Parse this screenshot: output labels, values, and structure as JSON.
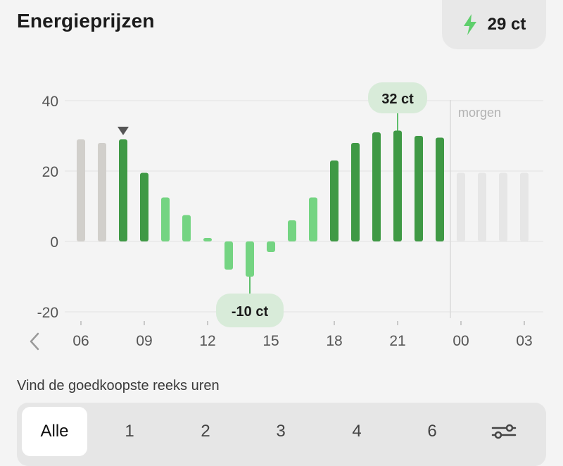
{
  "header": {
    "title": "Energieprijzen",
    "current_price": "29 ct",
    "bolt_icon": "lightning-bolt-icon"
  },
  "chart_data": {
    "type": "bar",
    "ylim": [
      -20,
      40
    ],
    "yticks": [
      "40",
      "20",
      "0",
      "-20"
    ],
    "ytick_values": [
      40,
      20,
      0,
      -20
    ],
    "xtick_labels": [
      "06",
      "09",
      "12",
      "15",
      "18",
      "21",
      "00",
      "03"
    ],
    "hours": [
      6,
      7,
      8,
      9,
      10,
      11,
      12,
      13,
      14,
      15,
      16,
      17,
      18,
      19,
      20,
      21,
      22,
      23,
      0,
      1,
      2,
      3
    ],
    "values": [
      29,
      28,
      29,
      19.5,
      12.5,
      7.5,
      1,
      -8,
      -10,
      -3,
      6,
      12.5,
      23,
      28,
      31,
      31.5,
      30,
      29.5,
      19.5,
      19.5,
      19.5,
      19.5
    ],
    "bar_states": [
      "past",
      "past",
      "current",
      "high",
      "low",
      "low",
      "low",
      "low",
      "low",
      "low",
      "low",
      "low",
      "high",
      "high",
      "high",
      "high",
      "high",
      "high",
      "tomorrow",
      "tomorrow",
      "tomorrow",
      "tomorrow"
    ],
    "current_marker": "triangle-down-icon",
    "max_label": "32 ct",
    "min_label": "-10 ct",
    "max_index": 15,
    "min_index": 8,
    "tomorrow_label": "morgen",
    "grid": true,
    "colors": {
      "past": "#d1cfcb",
      "current": "#3f9945",
      "high": "#3f9945",
      "low": "#74d482",
      "tomorrow": "#e6e6e6",
      "callout_bg": "#d8ebd9",
      "callout_line": "#5fbf6c",
      "grid": "#e2e2e2"
    }
  },
  "nav": {
    "prev_icon": "chevron-left-icon"
  },
  "filter": {
    "label": "Vind de goedkoopste reeks uren",
    "options": [
      "Alle",
      "1",
      "2",
      "3",
      "4",
      "6"
    ],
    "selected": "Alle",
    "settings_icon": "sliders-icon"
  }
}
